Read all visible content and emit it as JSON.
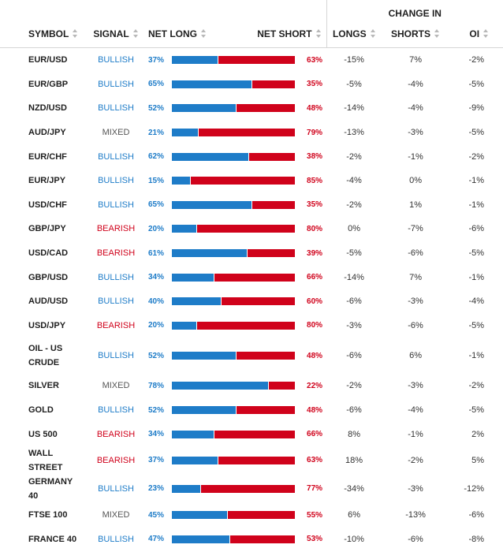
{
  "header": {
    "change_in": "CHANGE IN",
    "symbol": "SYMBOL",
    "signal": "SIGNAL",
    "net_long": "NET LONG",
    "net_short": "NET SHORT",
    "longs": "LONGS",
    "shorts": "SHORTS",
    "oi": "OI"
  },
  "colors": {
    "bullish": "#1e7cc8",
    "bearish": "#d0021b",
    "mixed": "#555555"
  },
  "rows": [
    {
      "symbol": "EUR/USD",
      "signal": "BULLISH",
      "net_long": "37%",
      "net_short": "63%",
      "long_pct": 37,
      "longs": "-15%",
      "shorts": "7%",
      "oi": "-2%"
    },
    {
      "symbol": "EUR/GBP",
      "signal": "BULLISH",
      "net_long": "65%",
      "net_short": "35%",
      "long_pct": 65,
      "longs": "-5%",
      "shorts": "-4%",
      "oi": "-5%"
    },
    {
      "symbol": "NZD/USD",
      "signal": "BULLISH",
      "net_long": "52%",
      "net_short": "48%",
      "long_pct": 52,
      "longs": "-14%",
      "shorts": "-4%",
      "oi": "-9%"
    },
    {
      "symbol": "AUD/JPY",
      "signal": "MIXED",
      "net_long": "21%",
      "net_short": "79%",
      "long_pct": 21,
      "longs": "-13%",
      "shorts": "-3%",
      "oi": "-5%"
    },
    {
      "symbol": "EUR/CHF",
      "signal": "BULLISH",
      "net_long": "62%",
      "net_short": "38%",
      "long_pct": 62,
      "longs": "-2%",
      "shorts": "-1%",
      "oi": "-2%"
    },
    {
      "symbol": "EUR/JPY",
      "signal": "BULLISH",
      "net_long": "15%",
      "net_short": "85%",
      "long_pct": 15,
      "longs": "-4%",
      "shorts": "0%",
      "oi": "-1%"
    },
    {
      "symbol": "USD/CHF",
      "signal": "BULLISH",
      "net_long": "65%",
      "net_short": "35%",
      "long_pct": 65,
      "longs": "-2%",
      "shorts": "1%",
      "oi": "-1%"
    },
    {
      "symbol": "GBP/JPY",
      "signal": "BEARISH",
      "net_long": "20%",
      "net_short": "80%",
      "long_pct": 20,
      "longs": "0%",
      "shorts": "-7%",
      "oi": "-6%"
    },
    {
      "symbol": "USD/CAD",
      "signal": "BEARISH",
      "net_long": "61%",
      "net_short": "39%",
      "long_pct": 61,
      "longs": "-5%",
      "shorts": "-6%",
      "oi": "-5%"
    },
    {
      "symbol": "GBP/USD",
      "signal": "BULLISH",
      "net_long": "34%",
      "net_short": "66%",
      "long_pct": 34,
      "longs": "-14%",
      "shorts": "7%",
      "oi": "-1%"
    },
    {
      "symbol": "AUD/USD",
      "signal": "BULLISH",
      "net_long": "40%",
      "net_short": "60%",
      "long_pct": 40,
      "longs": "-6%",
      "shorts": "-3%",
      "oi": "-4%"
    },
    {
      "symbol": "USD/JPY",
      "signal": "BEARISH",
      "net_long": "20%",
      "net_short": "80%",
      "long_pct": 20,
      "longs": "-3%",
      "shorts": "-6%",
      "oi": "-5%"
    },
    {
      "symbol": "OIL - US CRUDE",
      "signal": "BULLISH",
      "net_long": "52%",
      "net_short": "48%",
      "long_pct": 52,
      "longs": "-6%",
      "shorts": "6%",
      "oi": "-1%"
    },
    {
      "symbol": "SILVER",
      "signal": "MIXED",
      "net_long": "78%",
      "net_short": "22%",
      "long_pct": 78,
      "longs": "-2%",
      "shorts": "-3%",
      "oi": "-2%"
    },
    {
      "symbol": "GOLD",
      "signal": "BULLISH",
      "net_long": "52%",
      "net_short": "48%",
      "long_pct": 52,
      "longs": "-6%",
      "shorts": "-4%",
      "oi": "-5%"
    },
    {
      "symbol": "US 500",
      "signal": "BEARISH",
      "net_long": "34%",
      "net_short": "66%",
      "long_pct": 34,
      "longs": "8%",
      "shorts": "-1%",
      "oi": "2%"
    },
    {
      "symbol": "WALL STREET",
      "signal": "BEARISH",
      "net_long": "37%",
      "net_short": "63%",
      "long_pct": 37,
      "longs": "18%",
      "shorts": "-2%",
      "oi": "5%"
    },
    {
      "symbol": "GERMANY 40",
      "signal": "BULLISH",
      "net_long": "23%",
      "net_short": "77%",
      "long_pct": 23,
      "longs": "-34%",
      "shorts": "-3%",
      "oi": "-12%"
    },
    {
      "symbol": "FTSE 100",
      "signal": "MIXED",
      "net_long": "45%",
      "net_short": "55%",
      "long_pct": 45,
      "longs": "6%",
      "shorts": "-13%",
      "oi": "-6%"
    },
    {
      "symbol": "FRANCE 40",
      "signal": "BULLISH",
      "net_long": "47%",
      "net_short": "53%",
      "long_pct": 47,
      "longs": "-10%",
      "shorts": "-6%",
      "oi": "-8%"
    }
  ]
}
